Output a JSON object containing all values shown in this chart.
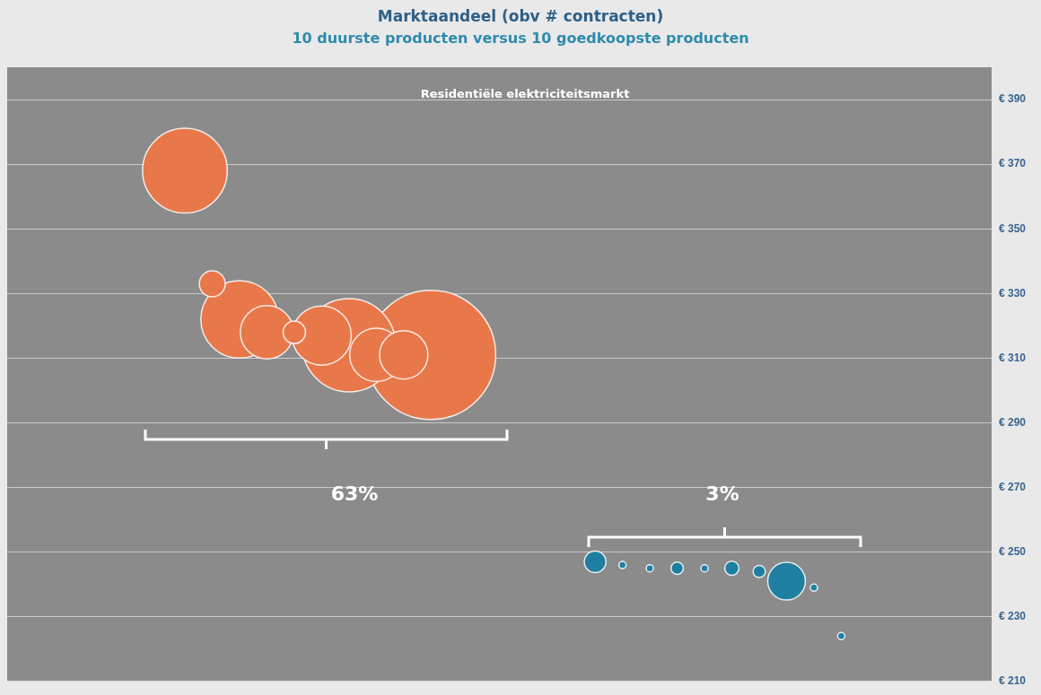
{
  "chart_data": {
    "type": "bubble",
    "title": "Marktaandeel (obv # contracten)",
    "subtitle": "10 duurste producten versus 10 goedkoopste producten",
    "annotations": [
      "Residentiële elektriciteitsmarkt",
      "63%",
      "3%"
    ],
    "categories": [
      null,
      null,
      null,
      null,
      null,
      null,
      null,
      null,
      null,
      null,
      null,
      null,
      null,
      null,
      null,
      null,
      null,
      null,
      null,
      null,
      null,
      null,
      null,
      null,
      null,
      null,
      null,
      null,
      null,
      null,
      null,
      null,
      null,
      null,
      null,
      null
    ],
    "series": [
      {
        "color": "#e8784a",
        "values": [
          null,
          null,
          null,
          null,
          null,
          null,
          368,
          333,
          322,
          318,
          318,
          317,
          314,
          311,
          311,
          311,
          null,
          null,
          null,
          null,
          null,
          null,
          null,
          null,
          null,
          null,
          null,
          null,
          null,
          null,
          null,
          null,
          null,
          null,
          null,
          null
        ],
        "sizes": [
          null,
          null,
          null,
          null,
          null,
          null,
          0.43,
          0.04,
          0.36,
          0.17,
          0.03,
          0.21,
          0.52,
          0.17,
          0.14,
          1,
          null,
          null,
          null,
          null,
          null,
          null,
          null,
          null,
          null,
          null,
          null,
          null,
          null,
          null,
          null,
          null,
          null,
          null,
          null,
          null
        ]
      },
      {
        "color": "#1f7fa0",
        "values": [
          null,
          null,
          null,
          null,
          null,
          null,
          null,
          null,
          null,
          null,
          null,
          null,
          null,
          null,
          null,
          null,
          null,
          null,
          null,
          null,
          null,
          247,
          246,
          245,
          245,
          245,
          245,
          244,
          241,
          239,
          224,
          null,
          null,
          null,
          null,
          null
        ],
        "sizes": [
          null,
          null,
          null,
          null,
          null,
          null,
          null,
          null,
          null,
          null,
          null,
          null,
          null,
          null,
          null,
          null,
          null,
          null,
          null,
          null,
          null,
          0.028,
          null,
          null,
          0.009,
          null,
          0.012,
          0.009,
          0.085,
          null,
          null,
          null,
          null,
          null,
          null,
          null
        ]
      }
    ],
    "ylim": [
      210,
      400
    ],
    "yticks": [
      {
        "value": 210,
        "label": "€ 210"
      },
      {
        "value": 230,
        "label": "€ 230"
      },
      {
        "value": 250,
        "label": "€ 250"
      },
      {
        "value": 270,
        "label": "€ 270"
      },
      {
        "value": 290,
        "label": "€ 290"
      },
      {
        "value": 310,
        "label": "€ 310"
      },
      {
        "value": 330,
        "label": "€ 330"
      },
      {
        "value": 350,
        "label": "€ 350"
      },
      {
        "value": 370,
        "label": "€ 370"
      },
      {
        "value": 390,
        "label": "€ 390"
      }
    ],
    "grid": "y",
    "tick_labels": "y"
  }
}
